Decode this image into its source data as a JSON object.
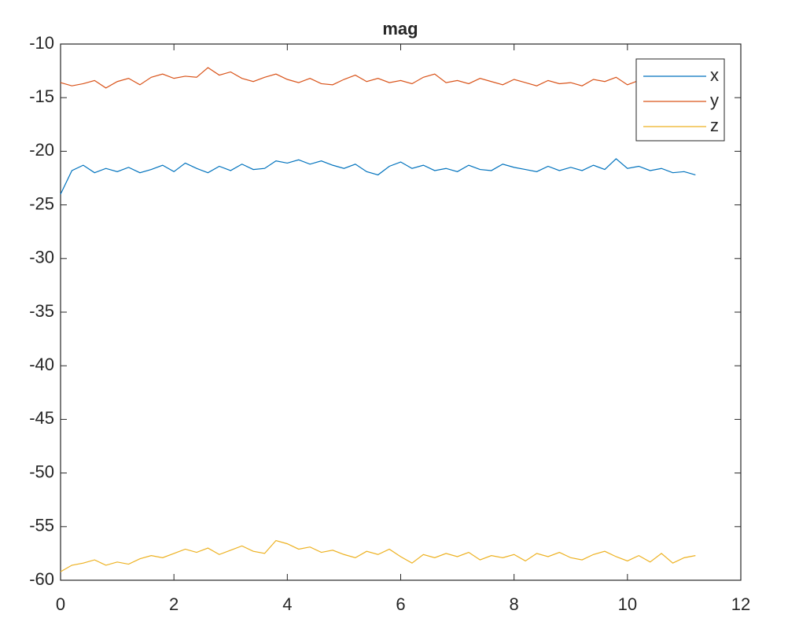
{
  "chart_data": {
    "type": "line",
    "title": "mag",
    "x": [
      0,
      0.2,
      0.4,
      0.6,
      0.8,
      1,
      1.2,
      1.4,
      1.6,
      1.8,
      2,
      2.2,
      2.4,
      2.6,
      2.8,
      3,
      3.2,
      3.4,
      3.6,
      3.8,
      4,
      4.2,
      4.4,
      4.6,
      4.8,
      5,
      5.2,
      5.4,
      5.6,
      5.8,
      6,
      6.2,
      6.4,
      6.6,
      6.8,
      7,
      7.2,
      7.4,
      7.6,
      7.8,
      8,
      8.2,
      8.4,
      8.6,
      8.8,
      9,
      9.2,
      9.4,
      9.6,
      9.8,
      10,
      10.2,
      10.4,
      10.6,
      10.8,
      11,
      11.2
    ],
    "series": [
      {
        "name": "x",
        "color": "#0072BD",
        "values": [
          -24,
          -21.8,
          -21.3,
          -22,
          -21.6,
          -21.9,
          -21.5,
          -22,
          -21.7,
          -21.3,
          -21.9,
          -21.1,
          -21.6,
          -22,
          -21.4,
          -21.8,
          -21.2,
          -21.7,
          -21.6,
          -20.9,
          -21.1,
          -20.8,
          -21.2,
          -20.9,
          -21.3,
          -21.6,
          -21.2,
          -21.9,
          -22.2,
          -21.4,
          -21,
          -21.6,
          -21.3,
          -21.8,
          -21.6,
          -21.9,
          -21.3,
          -21.7,
          -21.8,
          -21.2,
          -21.5,
          -21.7,
          -21.9,
          -21.4,
          -21.8,
          -21.5,
          -21.8,
          -21.3,
          -21.7,
          -20.7,
          -21.6,
          -21.4,
          -21.8,
          -21.6,
          -22,
          -21.9,
          -22.2
        ]
      },
      {
        "name": "y",
        "color": "#D95319",
        "values": [
          -13.6,
          -13.9,
          -13.7,
          -13.4,
          -14.1,
          -13.5,
          -13.2,
          -13.8,
          -13.1,
          -12.8,
          -13.2,
          -13,
          -13.1,
          -12.2,
          -12.9,
          -12.6,
          -13.2,
          -13.5,
          -13.1,
          -12.8,
          -13.3,
          -13.6,
          -13.2,
          -13.7,
          -13.8,
          -13.3,
          -12.9,
          -13.5,
          -13.2,
          -13.6,
          -13.4,
          -13.7,
          -13.1,
          -12.8,
          -13.6,
          -13.4,
          -13.7,
          -13.2,
          -13.5,
          -13.8,
          -13.3,
          -13.6,
          -13.9,
          -13.4,
          -13.7,
          -13.6,
          -13.9,
          -13.3,
          -13.5,
          -13.1,
          -13.8,
          -13.4,
          -13.6,
          -13.5,
          -13.9,
          -13.6,
          -13.7
        ]
      },
      {
        "name": "z",
        "color": "#EDB120",
        "values": [
          -59.2,
          -58.6,
          -58.4,
          -58.1,
          -58.6,
          -58.3,
          -58.5,
          -58,
          -57.7,
          -57.9,
          -57.5,
          -57.1,
          -57.4,
          -57,
          -57.6,
          -57.2,
          -56.8,
          -57.3,
          -57.5,
          -56.3,
          -56.6,
          -57.1,
          -56.9,
          -57.4,
          -57.2,
          -57.6,
          -57.9,
          -57.3,
          -57.6,
          -57.1,
          -57.8,
          -58.4,
          -57.6,
          -57.9,
          -57.5,
          -57.8,
          -57.4,
          -58.1,
          -57.7,
          -57.9,
          -57.6,
          -58.2,
          -57.5,
          -57.8,
          -57.4,
          -57.9,
          -58.1,
          -57.6,
          -57.3,
          -57.8,
          -58.2,
          -57.7,
          -58.3,
          -57.5,
          -58.4,
          -57.9,
          -57.7
        ]
      }
    ],
    "xlim": [
      0,
      12
    ],
    "xticks": [
      0,
      2,
      4,
      6,
      8,
      10,
      12
    ],
    "ylim": [
      -60,
      -10
    ],
    "yticks": [
      -60,
      -55,
      -50,
      -45,
      -40,
      -35,
      -30,
      -25,
      -20,
      -15,
      -10
    ],
    "grid": false,
    "legend": "northeast"
  }
}
